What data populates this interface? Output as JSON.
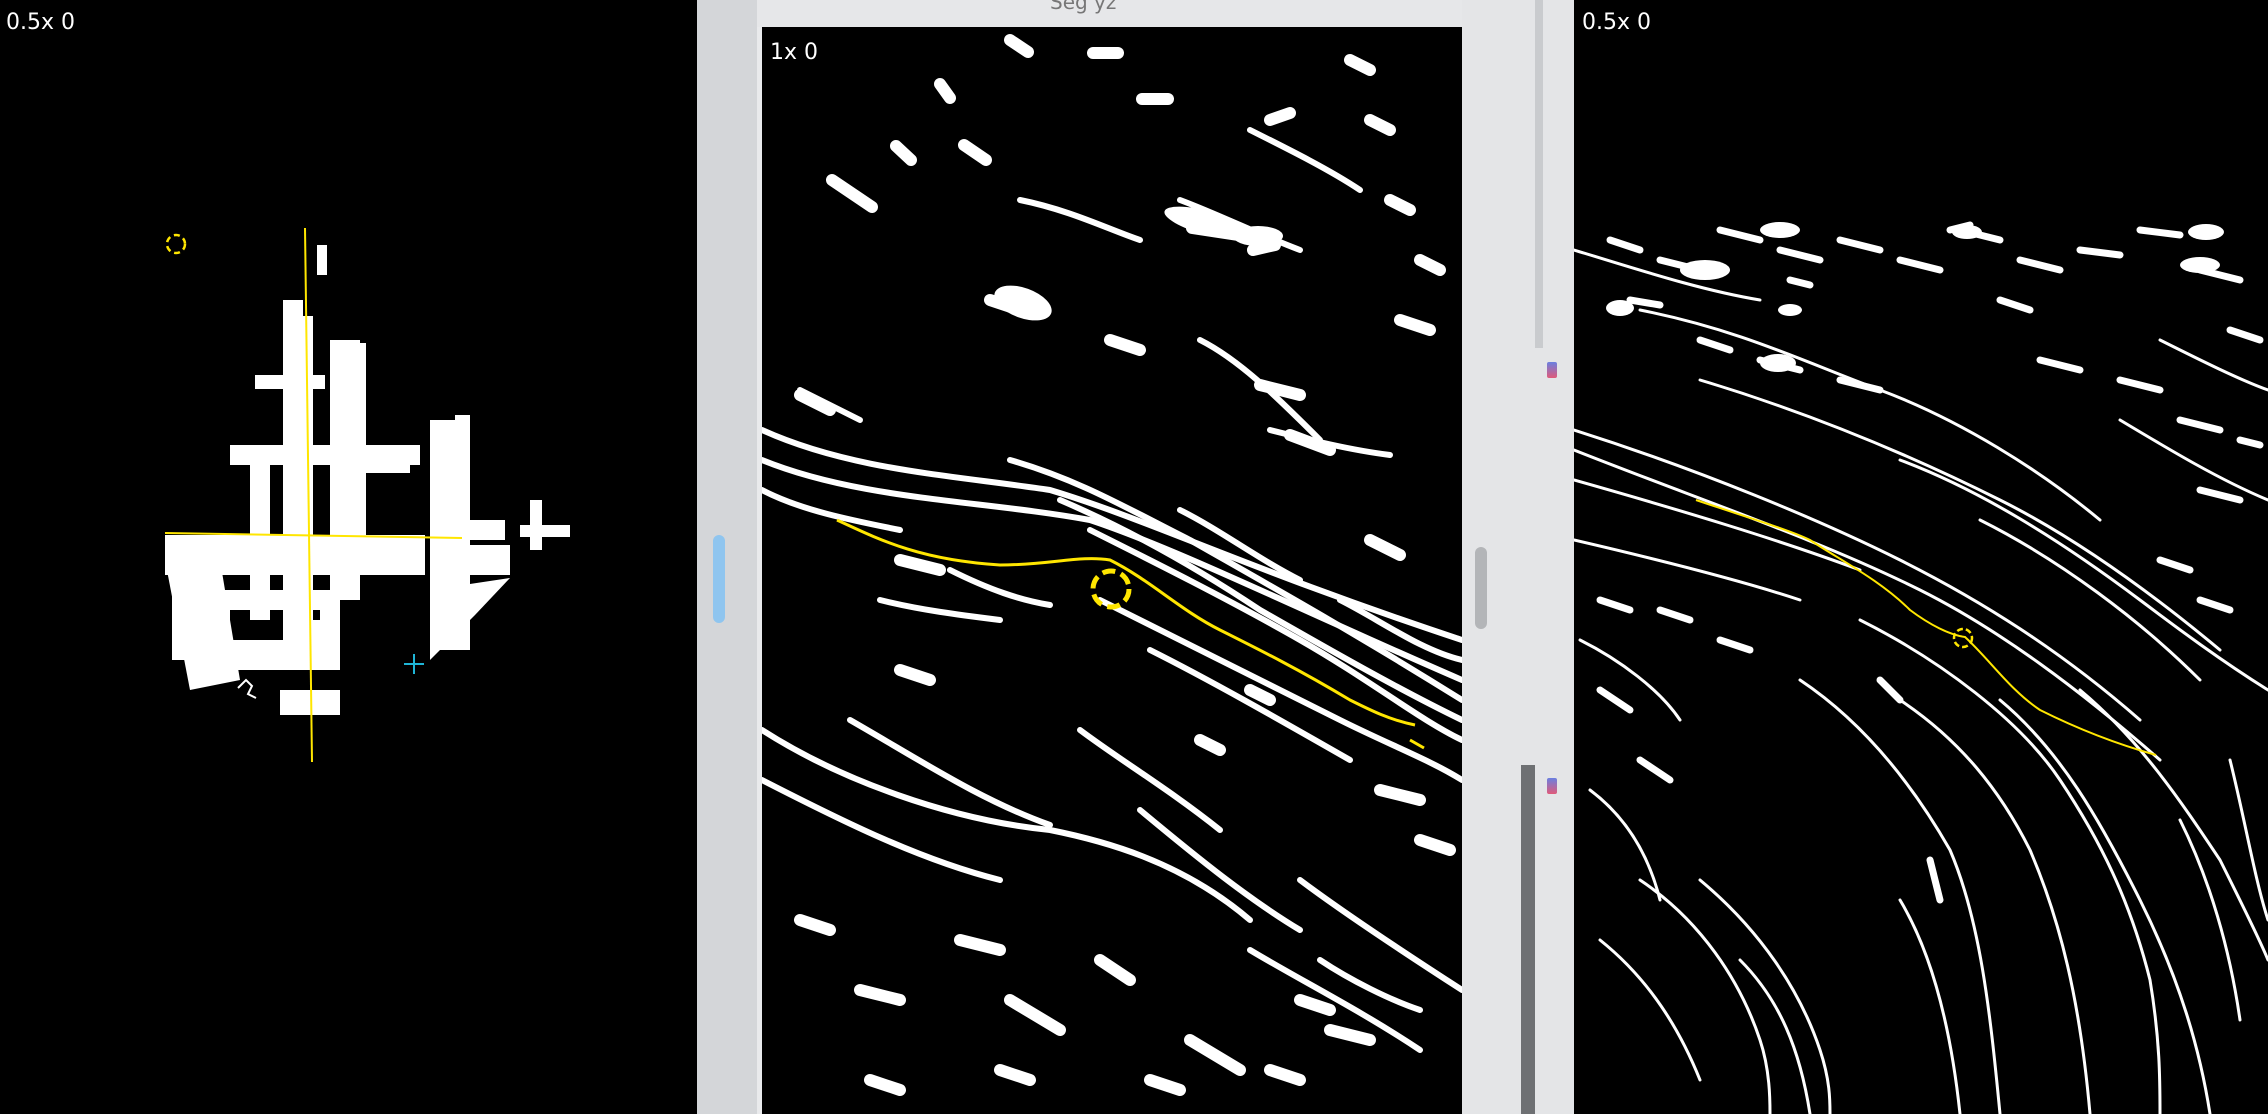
{
  "left_view": {
    "zoom_label": "0.5x 0"
  },
  "center_view": {
    "zoom_label": "1x 0",
    "window_title": "Seg yz"
  },
  "right_view": {
    "zoom_label": "0.5x 0"
  },
  "colors": {
    "overlay": "#ffe600",
    "cursor": "#1fb5d6",
    "background": "#000000",
    "foreground": "#ffffff"
  },
  "icons": [
    "focus-point-icon",
    "crosshair-icon",
    "resize-handle-icon",
    "close-icon"
  ]
}
